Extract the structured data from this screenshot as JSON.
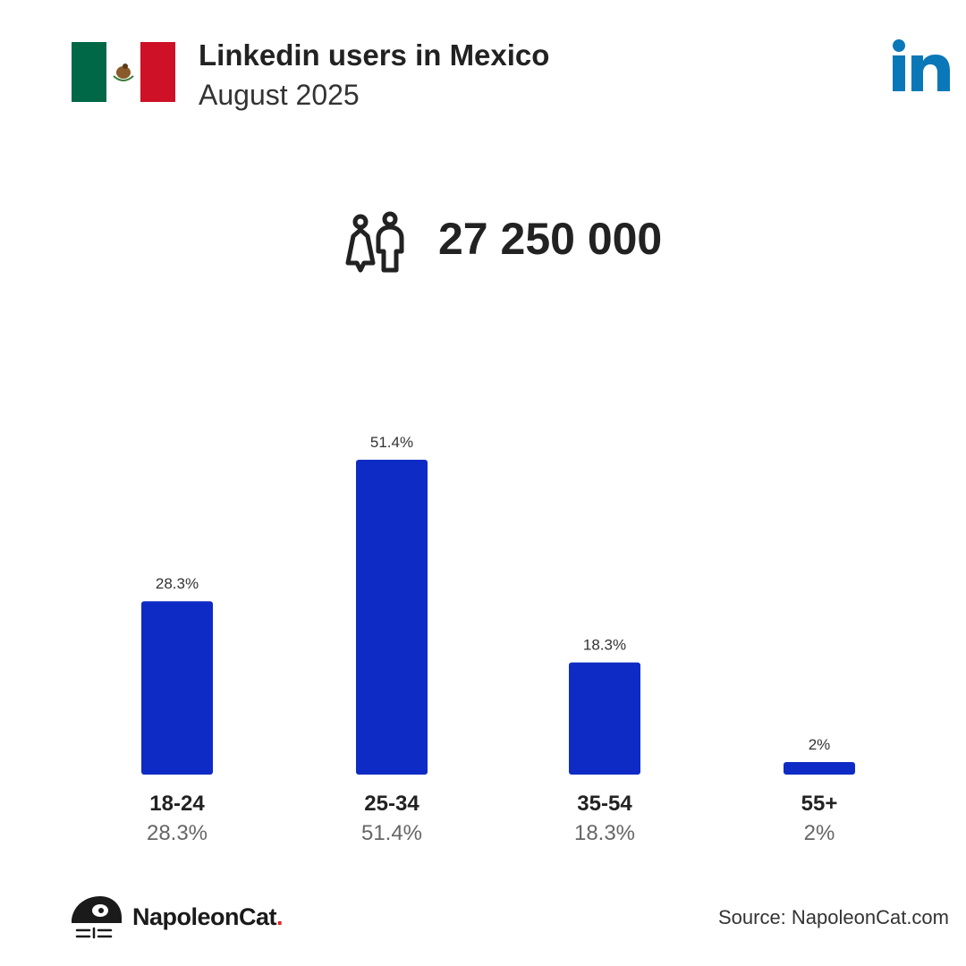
{
  "header": {
    "title": "Linkedin users in Mexico",
    "subtitle": "August 2025"
  },
  "summary": {
    "total_users": "27 250 000"
  },
  "icons": {
    "flag": "mexico-flag-icon",
    "platform": "linkedin-logo-icon",
    "users": "users-icon",
    "brand": "napoleoncat-logo-icon"
  },
  "colors": {
    "bar": "#0f2bc5",
    "linkedin": "#0a78b8",
    "flag_green": "#006847",
    "flag_red": "#ce1126",
    "brand_dot": "#e0262b"
  },
  "chart_data": {
    "type": "bar",
    "categories": [
      "18-24",
      "25-34",
      "35-54",
      "55+"
    ],
    "values": [
      28.3,
      51.4,
      18.3,
      2
    ],
    "data_labels": [
      "28.3%",
      "51.4%",
      "18.3%",
      "2%"
    ],
    "category_sublabels": [
      "28.3%",
      "51.4%",
      "18.3%",
      "2%"
    ],
    "unit": "%",
    "ylim": [
      0,
      51.4
    ],
    "grid": false,
    "legend": "none"
  },
  "footer": {
    "brand_name": "NapoleonCat",
    "brand_dot": ".",
    "source": "Source: NapoleonCat.com"
  }
}
